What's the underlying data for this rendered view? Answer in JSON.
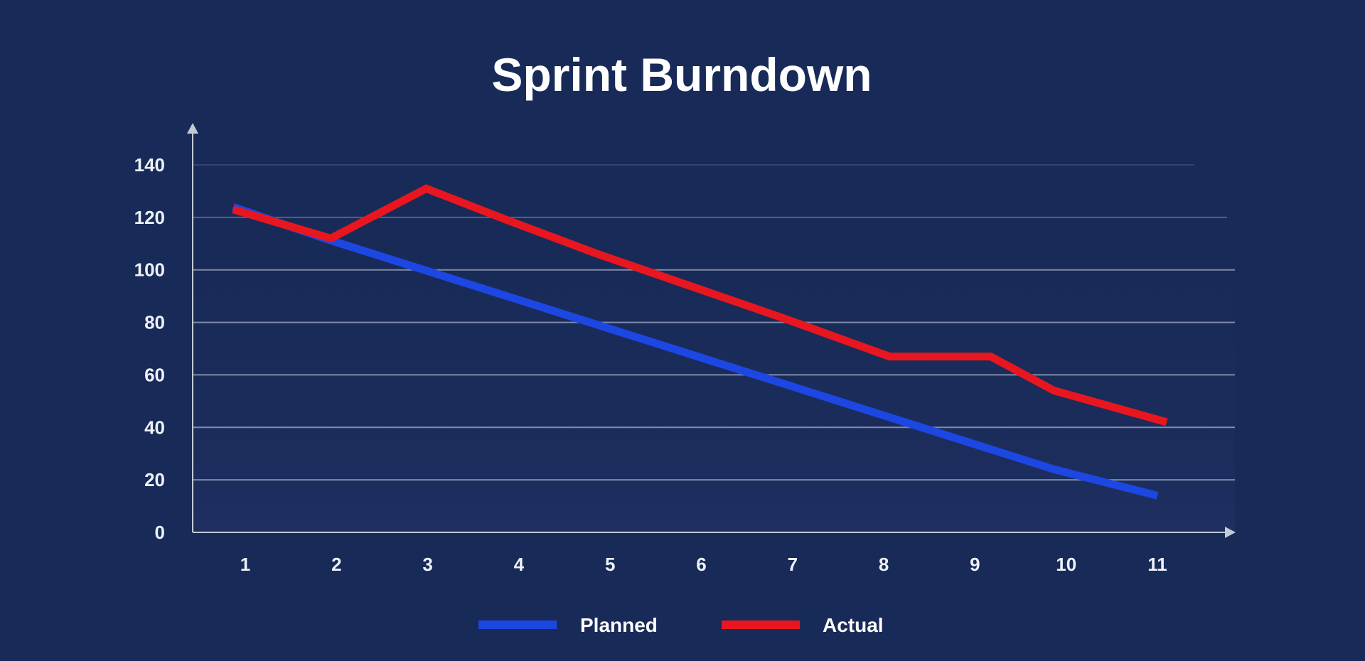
{
  "chart_data": {
    "type": "line",
    "title": "Sprint Burndown",
    "xlabel": "",
    "ylabel": "",
    "x": [
      1,
      2,
      3,
      4,
      5,
      6,
      7,
      8,
      9,
      10,
      11
    ],
    "x_tick_labels": [
      "1",
      "2",
      "3",
      "4",
      "5",
      "6",
      "7",
      "8",
      "9",
      "10",
      "11"
    ],
    "ylim": [
      0,
      140
    ],
    "y_ticks": [
      0,
      20,
      40,
      60,
      80,
      100,
      120,
      140
    ],
    "grid": true,
    "legend_position": "bottom-center",
    "series": [
      {
        "name": "Planned",
        "color": "#1c47e3",
        "values": [
          124,
          112,
          101,
          90,
          79,
          68,
          57,
          46,
          35,
          24,
          14
        ]
      },
      {
        "name": "Actual",
        "color": "#e8161f",
        "values": [
          123,
          112,
          131,
          119,
          106,
          94,
          82,
          67,
          67,
          54,
          42
        ]
      }
    ],
    "x_positions_note": ""
  },
  "colors": {
    "background": "#182a57",
    "plot_background": "#1b2b5b",
    "grid": "#9aa3bb",
    "axis": "#c4c9d6",
    "text": "#ffffff"
  }
}
